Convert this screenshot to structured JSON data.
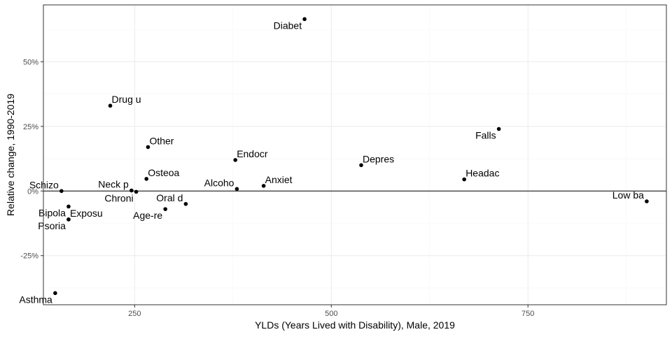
{
  "chart_data": {
    "type": "scatter",
    "xlabel": "YLDs (Years Lived with Disability), Male, 2019",
    "ylabel": "Relative change, 1990-2019",
    "xlim": [
      134,
      926
    ],
    "ylim": [
      -0.44,
      0.72
    ],
    "x_ticks": [
      {
        "value": 250,
        "label": "250"
      },
      {
        "value": 500,
        "label": "500"
      },
      {
        "value": 750,
        "label": "750"
      }
    ],
    "y_ticks": [
      {
        "value": -0.25,
        "label": "-25%"
      },
      {
        "value": 0,
        "label": "0%"
      },
      {
        "value": 0.25,
        "label": "25%"
      },
      {
        "value": 0.5,
        "label": "50%"
      }
    ],
    "zero_line": 0,
    "grid": true,
    "colors": {
      "point": "#000000",
      "grid_major": "#ebebeb",
      "grid_minor": "#f5f5f5",
      "border": "#333333"
    },
    "points": [
      {
        "label": "Diabet",
        "x": 466,
        "y": 0.665,
        "anchor": "end",
        "dy": 1
      },
      {
        "label": "Drug u",
        "x": 219,
        "y": 0.33,
        "anchor": "start",
        "dy": -1
      },
      {
        "label": "Falls",
        "x": 713,
        "y": 0.24,
        "anchor": "end",
        "dy": 1
      },
      {
        "label": "Other",
        "x": 267,
        "y": 0.17,
        "anchor": "start",
        "dy": -1
      },
      {
        "label": "Endocr",
        "x": 378,
        "y": 0.12,
        "anchor": "start",
        "dy": -1
      },
      {
        "label": "Depres",
        "x": 538,
        "y": 0.1,
        "anchor": "start",
        "dy": -1
      },
      {
        "label": "Headac",
        "x": 669,
        "y": 0.045,
        "anchor": "start",
        "dy": -1
      },
      {
        "label": "Osteoa",
        "x": 265,
        "y": 0.047,
        "anchor": "start",
        "dy": -1
      },
      {
        "label": "Anxiet",
        "x": 414,
        "y": 0.02,
        "anchor": "start",
        "dy": -1
      },
      {
        "label": "Alcoho",
        "x": 380,
        "y": 0.008,
        "anchor": "end",
        "dy": -1
      },
      {
        "label": "Neck p",
        "x": 246,
        "y": 0.002,
        "anchor": "end",
        "dy": -1
      },
      {
        "label": "Schizo",
        "x": 157,
        "y": 0.0,
        "anchor": "end",
        "dy": -1
      },
      {
        "label": "Chroni",
        "x": 252,
        "y": -0.003,
        "anchor": "end",
        "dy": 1
      },
      {
        "label": "Exposu",
        "x": 166,
        "y": -0.11,
        "anchor": "start",
        "dy": -1
      },
      {
        "label": "Psoria",
        "x": 166,
        "y": -0.11,
        "anchor": "end",
        "dy": 1
      },
      {
        "label": "Bipola",
        "x": 166,
        "y": -0.06,
        "anchor": "end",
        "dy": 1
      },
      {
        "label": "Oral d",
        "x": 315,
        "y": -0.05,
        "anchor": "end",
        "dy": -1
      },
      {
        "label": "Age-re",
        "x": 289,
        "y": -0.07,
        "anchor": "end",
        "dy": 1
      },
      {
        "label": "Low ba",
        "x": 901,
        "y": -0.04,
        "anchor": "end",
        "dy": -1
      },
      {
        "label": "Asthma",
        "x": 149,
        "y": -0.395,
        "anchor": "end",
        "dy": 1
      }
    ]
  }
}
